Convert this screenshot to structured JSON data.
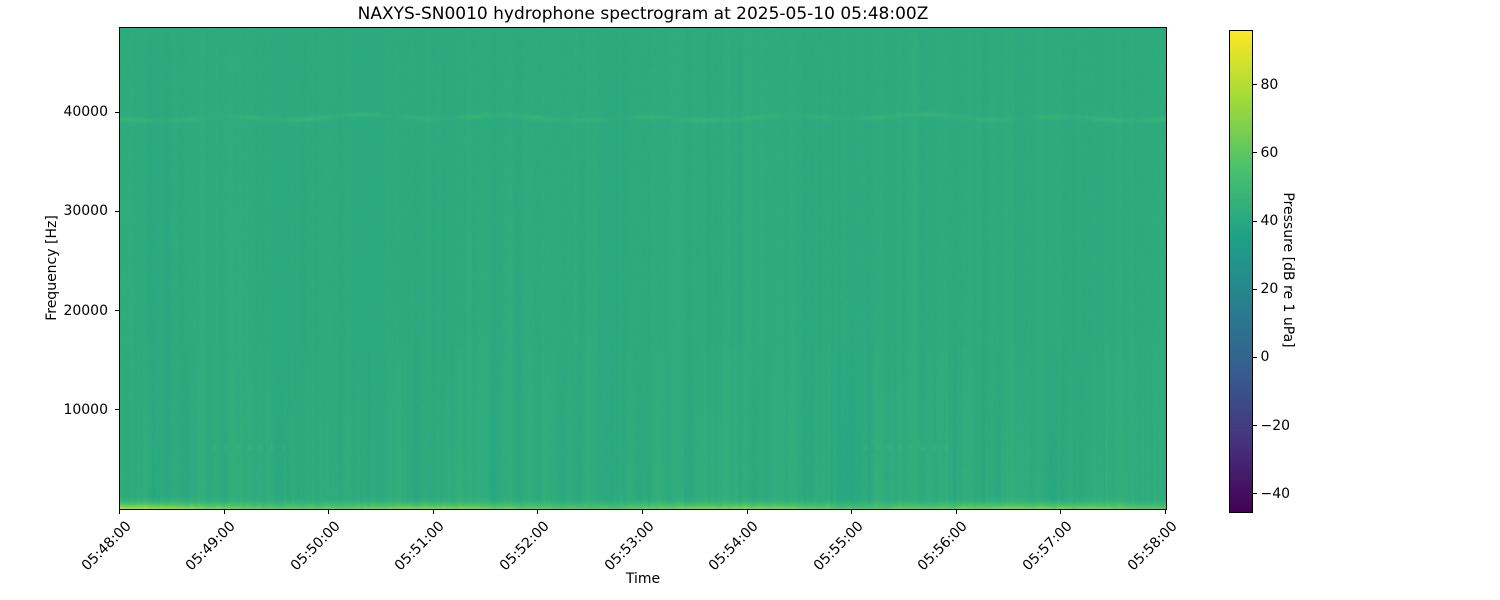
{
  "figure": {
    "title": "NAXYS-SN0010 hydrophone spectrogram at 2025-05-10 05:48:00Z",
    "background_color": "#ffffff"
  },
  "chart_data": {
    "type": "heatmap",
    "subtype": "hydrophone-spectrogram",
    "title": "NAXYS-SN0010 hydrophone spectrogram at 2025-05-10 05:48:00Z",
    "xlabel": "Time",
    "ylabel": "Frequency [Hz]",
    "x_tick_labels": [
      "05:48:00",
      "05:49:00",
      "05:50:00",
      "05:51:00",
      "05:52:00",
      "05:53:00",
      "05:54:00",
      "05:55:00",
      "05:56:00",
      "05:57:00",
      "05:58:00"
    ],
    "x_range": [
      "05:48:00",
      "05:58:00"
    ],
    "y_tick_values": [
      10000,
      20000,
      30000,
      40000
    ],
    "y_tick_labels": [
      "10000",
      "20000",
      "30000",
      "40000"
    ],
    "y_range_hz": [
      0,
      48500
    ],
    "grid": false,
    "legend": "none",
    "colormap": "viridis",
    "colormap_anchors": [
      "#440154",
      "#46327e",
      "#365c8d",
      "#277f8e",
      "#1fa187",
      "#4ac16d",
      "#a0da39",
      "#fde725"
    ],
    "colorbar": {
      "label": "Pressure [dB re 1 uPa]",
      "tick_values": [
        80,
        60,
        40,
        20,
        0,
        -20,
        -40
      ],
      "tick_labels": [
        "80",
        "60",
        "40",
        "20",
        "0",
        "−20",
        "−40"
      ],
      "range_db": [
        -45,
        96
      ],
      "orientation": "vertical"
    },
    "content": {
      "background_level_db": 42,
      "background_color_approx": "#2bab7d",
      "features": [
        {
          "name": "narrowband-tonal-line",
          "freq_hz": 39500,
          "level_db": 46,
          "description": "faint wavy brighter horizontal line across full duration"
        },
        {
          "name": "broadband-low-frequency-noise",
          "freq_hz_max": 16000,
          "level_db": 44,
          "description": "subtle vertical striations, stronger toward low frequencies"
        },
        {
          "name": "bright-bottom-band",
          "freq_hz_max": 1000,
          "level_db": 72,
          "description": "yellow-green high-level band along bottom edge, brightest at start (left)"
        },
        {
          "name": "faint-dotted-tone",
          "freq_hz": 6300,
          "level_db": 44,
          "description": "sparse faint brighter dots"
        }
      ]
    }
  }
}
